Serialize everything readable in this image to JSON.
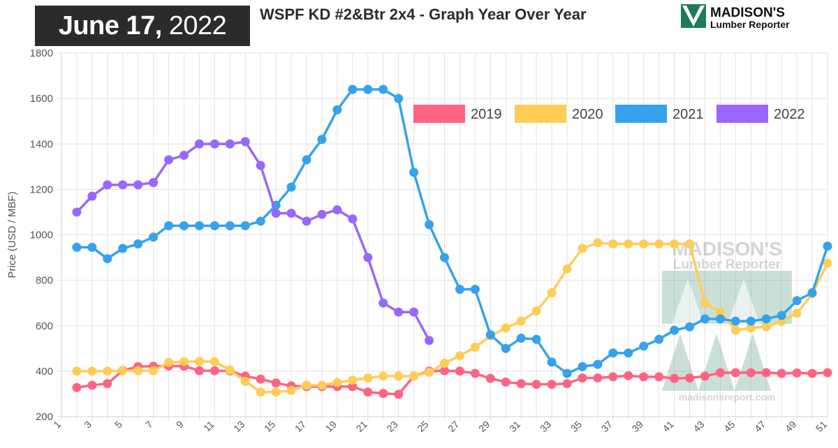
{
  "header": {
    "date_month_day": "June 17,",
    "date_year": "2022",
    "title": "WSPF KD #2&Btr 2x4 - Graph Year Over Year",
    "logo_line1": "MADISON'S",
    "logo_line2": "Lumber Reporter"
  },
  "watermark": {
    "line1": "MADISON'S",
    "line2": "Lumber Reporter",
    "url": "madisonsreport.com"
  },
  "colors": {
    "2019": "#ff6384",
    "2020": "#ffcd56",
    "2021": "#36a2eb",
    "2022": "#9966ff",
    "grid": "#e2e2e2",
    "logo_green": "#1e7a5a"
  },
  "chart_data": {
    "type": "line",
    "title": "WSPF KD #2&Btr 2x4 - Graph Year Over Year",
    "xlabel": "",
    "ylabel": "Price (USD / MBF)",
    "ylim": [
      200,
      1800
    ],
    "yticks": [
      200,
      400,
      600,
      800,
      1000,
      1200,
      1400,
      1600,
      1800
    ],
    "xlim": [
      1,
      51
    ],
    "xticks": [
      1,
      3,
      5,
      7,
      9,
      11,
      13,
      15,
      17,
      19,
      21,
      23,
      25,
      27,
      29,
      31,
      33,
      35,
      37,
      39,
      41,
      43,
      45,
      47,
      49,
      51
    ],
    "legend_position": "top-right",
    "grid": true,
    "series": [
      {
        "name": "2019",
        "x": [
          2,
          3,
          4,
          5,
          6,
          7,
          8,
          9,
          10,
          11,
          12,
          13,
          14,
          15,
          16,
          17,
          18,
          19,
          20,
          21,
          22,
          23,
          24,
          25,
          26,
          27,
          28,
          29,
          30,
          31,
          32,
          33,
          34,
          35,
          36,
          37,
          38,
          39,
          40,
          41,
          42,
          43,
          44,
          45,
          46,
          47,
          48,
          49,
          50,
          51
        ],
        "values": [
          328,
          338,
          345,
          403,
          420,
          422,
          423,
          422,
          402,
          402,
          401,
          378,
          365,
          348,
          335,
          332,
          332,
          332,
          332,
          308,
          302,
          298,
          378,
          400,
          402,
          400,
          390,
          368,
          352,
          345,
          342,
          342,
          345,
          370,
          370,
          375,
          380,
          375,
          375,
          368,
          370,
          378,
          393,
          393,
          393,
          393,
          390,
          392,
          390,
          393
        ]
      },
      {
        "name": "2020",
        "x": [
          2,
          3,
          4,
          5,
          6,
          7,
          8,
          9,
          10,
          11,
          12,
          13,
          14,
          15,
          16,
          17,
          18,
          19,
          20,
          21,
          22,
          23,
          24,
          25,
          26,
          27,
          28,
          29,
          30,
          31,
          32,
          33,
          34,
          35,
          36,
          37,
          38,
          39,
          40,
          41,
          42,
          43,
          44,
          45,
          46,
          47,
          48,
          49,
          50,
          51
        ],
        "values": [
          400,
          400,
          400,
          402,
          402,
          402,
          438,
          442,
          443,
          442,
          405,
          355,
          308,
          308,
          315,
          338,
          338,
          350,
          360,
          370,
          378,
          378,
          378,
          395,
          435,
          468,
          505,
          555,
          590,
          620,
          665,
          745,
          850,
          940,
          965,
          960,
          960,
          960,
          960,
          960,
          960,
          700,
          660,
          580,
          590,
          595,
          620,
          655,
          740,
          875
        ]
      },
      {
        "name": "2021",
        "x": [
          2,
          3,
          4,
          5,
          6,
          7,
          8,
          9,
          10,
          11,
          12,
          13,
          14,
          15,
          16,
          17,
          18,
          19,
          20,
          21,
          22,
          23,
          24,
          25,
          26,
          27,
          28,
          29,
          30,
          31,
          32,
          33,
          34,
          35,
          36,
          37,
          38,
          39,
          40,
          41,
          42,
          43,
          44,
          45,
          46,
          47,
          48,
          49,
          50,
          51
        ],
        "values": [
          945,
          945,
          895,
          940,
          960,
          990,
          1040,
          1040,
          1040,
          1040,
          1040,
          1040,
          1060,
          1130,
          1210,
          1330,
          1420,
          1550,
          1640,
          1640,
          1640,
          1600,
          1275,
          1045,
          900,
          760,
          760,
          560,
          500,
          545,
          540,
          440,
          390,
          420,
          430,
          480,
          480,
          510,
          540,
          580,
          595,
          630,
          630,
          620,
          620,
          630,
          645,
          710,
          745,
          950
        ]
      },
      {
        "name": "2022",
        "x": [
          2,
          3,
          4,
          5,
          6,
          7,
          8,
          9,
          10,
          11,
          12,
          13,
          14,
          15,
          16,
          17,
          18,
          19,
          20,
          21,
          22,
          23,
          24,
          25
        ],
        "values": [
          1100,
          1170,
          1220,
          1220,
          1220,
          1230,
          1330,
          1350,
          1400,
          1400,
          1400,
          1410,
          1305,
          1095,
          1095,
          1060,
          1090,
          1110,
          1070,
          900,
          700,
          660,
          660,
          535
        ]
      }
    ]
  }
}
